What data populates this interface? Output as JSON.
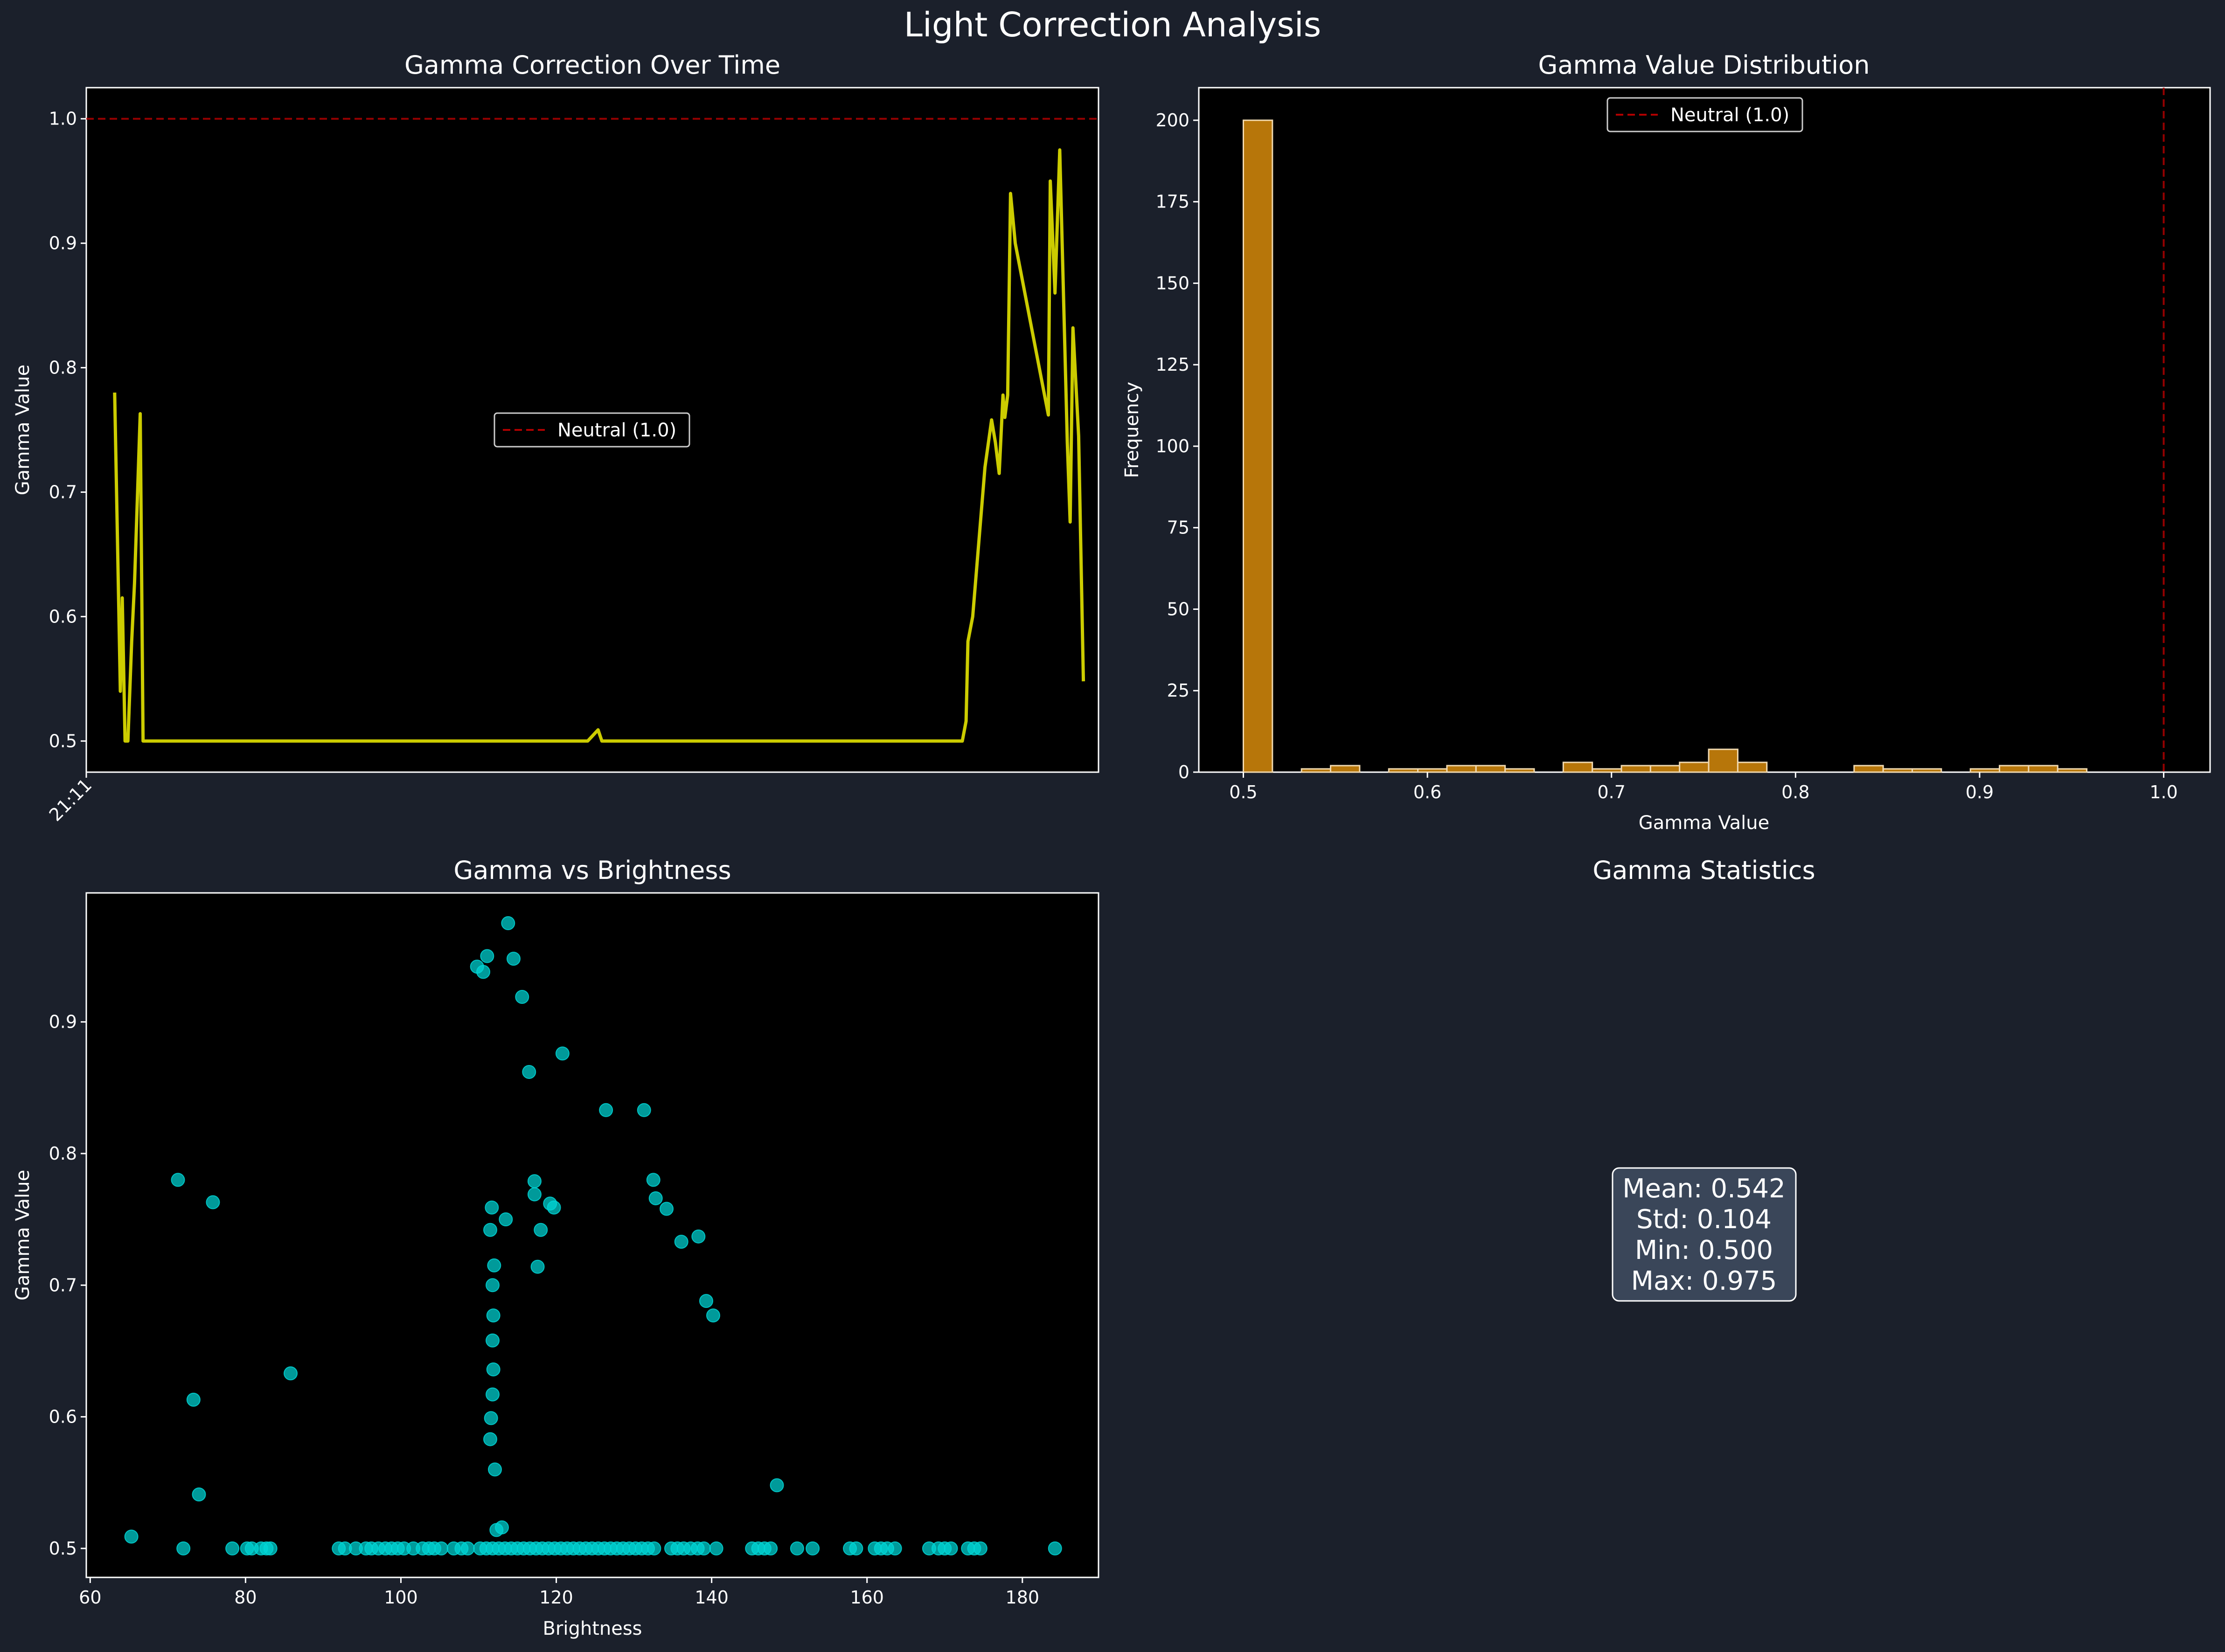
{
  "figure": {
    "title": "Light Correction Analysis",
    "background": "#1b202b",
    "axes_background": "#000000",
    "text_color": "#ffffff",
    "neutral_color": "#b00000"
  },
  "chart_data": [
    {
      "id": "time",
      "type": "line",
      "title": "Gamma Correction Over Time",
      "xlabel": "",
      "ylabel": "Gamma Value",
      "xlim": [
        -0.03,
        1.04
      ],
      "ylim": [
        0.475,
        1.025
      ],
      "yticks": [
        0.5,
        0.6,
        0.7,
        0.8,
        0.9,
        1.0
      ],
      "yticklabels": [
        "0.5",
        "0.6",
        "0.7",
        "0.8",
        "0.9",
        "1.0"
      ],
      "xticks": [
        {
          "x": -0.03,
          "label": "21:11"
        }
      ],
      "color": "#cccc00",
      "neutral_line": {
        "y": 1.0,
        "label": "Neutral (1.0)"
      },
      "legend": {
        "position": "center-left",
        "label": "Neutral (1.0)"
      },
      "series": [
        {
          "name": "Gamma",
          "x": [
            0,
            0.006,
            0.008,
            0.011,
            0.014,
            0.018,
            0.021,
            0.027,
            0.03,
            0.5,
            0.511,
            0.515,
            0.896,
            0.9,
            0.9,
            0.902,
            0.907,
            0.92,
            0.927,
            0.931,
            0.935,
            0.939,
            0.941,
            0.944,
            0.947,
            0.952,
            0.987,
            0.989,
            0.994,
            0.999,
            1.007,
            1.01,
            1.013,
            1.019,
            1.024
          ],
          "y": [
            0.78,
            0.54,
            0.615,
            0.5,
            0.5,
            0.58,
            0.627,
            0.763,
            0.5,
            0.5,
            0.509,
            0.5,
            0.5,
            0.516,
            0.516,
            0.58,
            0.6,
            0.72,
            0.758,
            0.74,
            0.715,
            0.778,
            0.76,
            0.778,
            0.94,
            0.9,
            0.762,
            0.95,
            0.86,
            0.975,
            0.74,
            0.676,
            0.832,
            0.745,
            0.548
          ]
        }
      ]
    },
    {
      "id": "hist",
      "type": "bar",
      "title": "Gamma Value Distribution",
      "xlabel": "Gamma Value",
      "ylabel": "Frequency",
      "xlim": [
        0.4758,
        1.0252
      ],
      "ylim": [
        0,
        210
      ],
      "xticks": [
        0.5,
        0.6,
        0.7,
        0.8,
        0.9,
        1.0
      ],
      "xticklabels": [
        "0.5",
        "0.6",
        "0.7",
        "0.8",
        "0.9",
        "1.0"
      ],
      "yticks": [
        0,
        25,
        50,
        75,
        100,
        125,
        150,
        175,
        200
      ],
      "yticklabels": [
        "0",
        "25",
        "50",
        "75",
        "100",
        "125",
        "150",
        "175",
        "200"
      ],
      "color": "#b7760a",
      "edgecolor": "#f0d9b0",
      "bin_start": 0.5,
      "bin_width": 0.0158,
      "values": [
        200,
        0,
        1,
        2,
        0,
        1,
        1,
        2,
        2,
        1,
        0,
        3,
        1,
        2,
        2,
        3,
        7,
        3,
        0,
        0,
        0,
        2,
        1,
        1,
        0,
        1,
        2,
        2,
        1
      ],
      "neutral_line": {
        "x": 1.0,
        "label": "Neutral (1.0)"
      },
      "legend": {
        "position": "top-center",
        "label": "Neutral (1.0)"
      }
    },
    {
      "id": "scatter",
      "type": "scatter",
      "title": "Gamma vs Brightness",
      "xlabel": "Brightness",
      "ylabel": "Gamma Value",
      "xlim": [
        59.5,
        189.8
      ],
      "ylim": [
        0.478,
        0.998
      ],
      "xticks": [
        60,
        80,
        100,
        120,
        140,
        160,
        180
      ],
      "xticklabels": [
        "60",
        "80",
        "100",
        "120",
        "140",
        "160",
        "180"
      ],
      "yticks": [
        0.5,
        0.6,
        0.7,
        0.8,
        0.9
      ],
      "yticklabels": [
        "0.5",
        "0.6",
        "0.7",
        "0.8",
        "0.9"
      ],
      "color": "#00d6d6",
      "points": [
        [
          65.3,
          0.509
        ],
        [
          71.3,
          0.78
        ],
        [
          72.0,
          0.5
        ],
        [
          73.3,
          0.613
        ],
        [
          74.0,
          0.541
        ],
        [
          75.8,
          0.763
        ],
        [
          78.3,
          0.5
        ],
        [
          80.2,
          0.5
        ],
        [
          80.8,
          0.5
        ],
        [
          82.0,
          0.5
        ],
        [
          82.7,
          0.5
        ],
        [
          83.2,
          0.5
        ],
        [
          85.8,
          0.633
        ],
        [
          92.0,
          0.5
        ],
        [
          92.8,
          0.5
        ],
        [
          94.2,
          0.5
        ],
        [
          95.5,
          0.5
        ],
        [
          96.2,
          0.5
        ],
        [
          97.1,
          0.5
        ],
        [
          98.0,
          0.5
        ],
        [
          98.8,
          0.5
        ],
        [
          99.6,
          0.5
        ],
        [
          100.4,
          0.5
        ],
        [
          101.6,
          0.5
        ],
        [
          102.8,
          0.5
        ],
        [
          103.6,
          0.5
        ],
        [
          104.3,
          0.5
        ],
        [
          105.2,
          0.5
        ],
        [
          106.8,
          0.5
        ],
        [
          107.8,
          0.5
        ],
        [
          108.6,
          0.5
        ],
        [
          109.8,
          0.942
        ],
        [
          110.6,
          0.938
        ],
        [
          111.1,
          0.95
        ],
        [
          111.5,
          0.742
        ],
        [
          111.7,
          0.759
        ],
        [
          111.8,
          0.7
        ],
        [
          112.0,
          0.715
        ],
        [
          111.9,
          0.677
        ],
        [
          111.8,
          0.658
        ],
        [
          111.9,
          0.636
        ],
        [
          111.8,
          0.617
        ],
        [
          111.6,
          0.599
        ],
        [
          111.5,
          0.583
        ],
        [
          112.1,
          0.56
        ],
        [
          112.3,
          0.514
        ],
        [
          113.0,
          0.516
        ],
        [
          113.5,
          0.75
        ],
        [
          113.8,
          0.975
        ],
        [
          114.5,
          0.948
        ],
        [
          115.6,
          0.919
        ],
        [
          116.5,
          0.862
        ],
        [
          117.2,
          0.779
        ],
        [
          117.2,
          0.769
        ],
        [
          117.6,
          0.714
        ],
        [
          118.0,
          0.742
        ],
        [
          119.2,
          0.762
        ],
        [
          119.7,
          0.759
        ],
        [
          120.8,
          0.876
        ],
        [
          126.4,
          0.833
        ],
        [
          131.3,
          0.833
        ],
        [
          132.5,
          0.78
        ],
        [
          132.8,
          0.766
        ],
        [
          134.2,
          0.758
        ],
        [
          136.1,
          0.733
        ],
        [
          138.3,
          0.737
        ],
        [
          139.3,
          0.688
        ],
        [
          140.2,
          0.677
        ],
        [
          110.2,
          0.5
        ],
        [
          111.0,
          0.5
        ],
        [
          111.8,
          0.5
        ],
        [
          112.6,
          0.5
        ],
        [
          113.4,
          0.5
        ],
        [
          114.2,
          0.5
        ],
        [
          115.0,
          0.5
        ],
        [
          115.8,
          0.5
        ],
        [
          116.6,
          0.5
        ],
        [
          117.4,
          0.5
        ],
        [
          118.2,
          0.5
        ],
        [
          119.0,
          0.5
        ],
        [
          119.8,
          0.5
        ],
        [
          120.6,
          0.5
        ],
        [
          121.4,
          0.5
        ],
        [
          122.2,
          0.5
        ],
        [
          123.0,
          0.5
        ],
        [
          123.8,
          0.5
        ],
        [
          124.6,
          0.5
        ],
        [
          125.4,
          0.5
        ],
        [
          126.2,
          0.5
        ],
        [
          127.0,
          0.5
        ],
        [
          127.8,
          0.5
        ],
        [
          128.6,
          0.5
        ],
        [
          129.4,
          0.5
        ],
        [
          130.2,
          0.5
        ],
        [
          131.0,
          0.5
        ],
        [
          131.8,
          0.5
        ],
        [
          132.6,
          0.5
        ],
        [
          134.8,
          0.5
        ],
        [
          135.6,
          0.5
        ],
        [
          136.4,
          0.5
        ],
        [
          137.3,
          0.5
        ],
        [
          138.2,
          0.5
        ],
        [
          139.0,
          0.5
        ],
        [
          140.6,
          0.5
        ],
        [
          145.2,
          0.5
        ],
        [
          146.0,
          0.5
        ],
        [
          146.8,
          0.5
        ],
        [
          147.6,
          0.5
        ],
        [
          148.4,
          0.548
        ],
        [
          151.0,
          0.5
        ],
        [
          153.0,
          0.5
        ],
        [
          157.8,
          0.5
        ],
        [
          158.6,
          0.5
        ],
        [
          161.0,
          0.5
        ],
        [
          161.8,
          0.5
        ],
        [
          162.6,
          0.5
        ],
        [
          163.6,
          0.5
        ],
        [
          168.0,
          0.5
        ],
        [
          169.2,
          0.5
        ],
        [
          170.0,
          0.5
        ],
        [
          170.8,
          0.5
        ],
        [
          173.0,
          0.5
        ],
        [
          173.8,
          0.5
        ],
        [
          174.6,
          0.5
        ],
        [
          184.2,
          0.5
        ]
      ]
    }
  ],
  "stats": {
    "title": "Gamma Statistics",
    "lines": [
      "Mean: 0.542",
      "Std: 0.104",
      "Min: 0.500",
      "Max: 0.975"
    ]
  }
}
